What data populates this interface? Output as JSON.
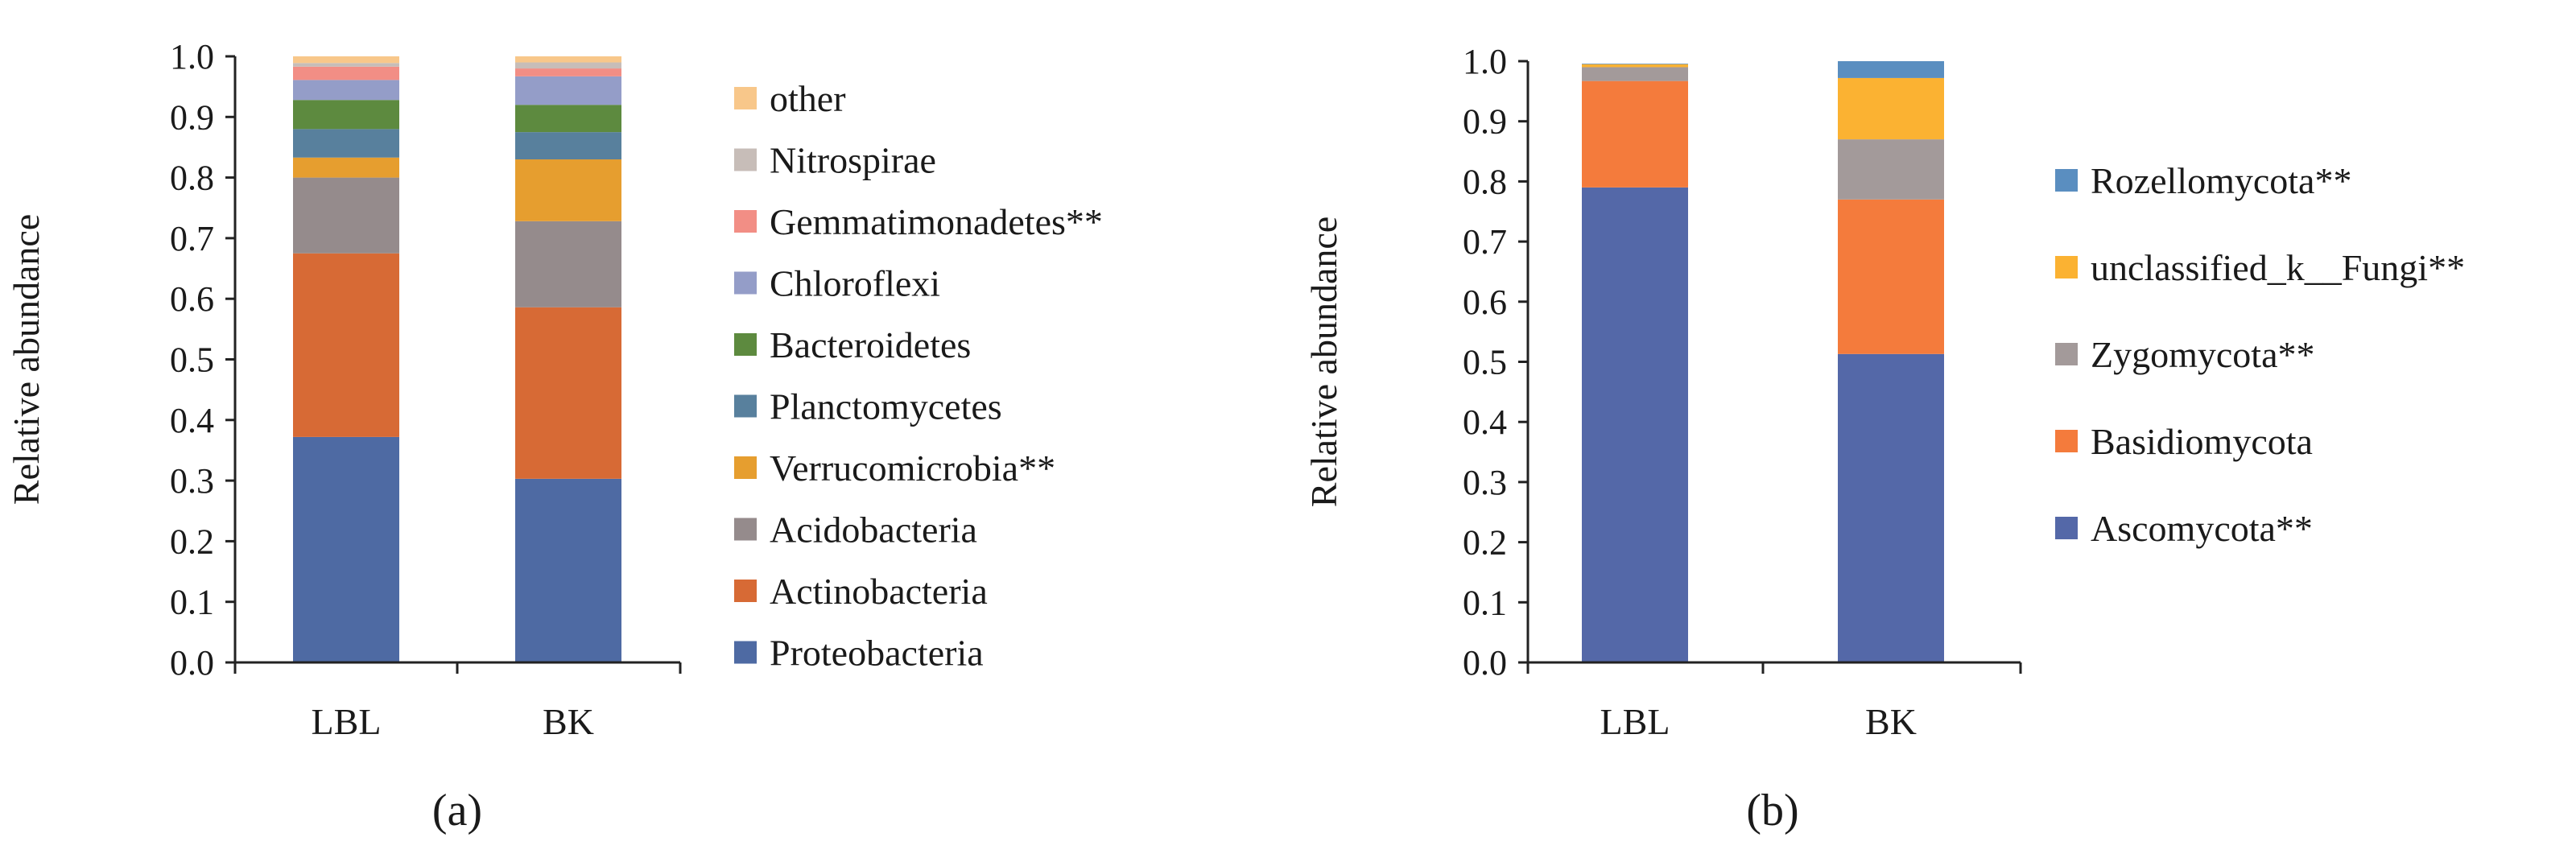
{
  "chart_data": [
    {
      "type": "stacked-bar",
      "panel_label": "(a)",
      "ylabel": "Relative abundance",
      "ylim": [
        0,
        1
      ],
      "yticks": [
        "0.0",
        "0.1",
        "0.2",
        "0.3",
        "0.4",
        "0.5",
        "0.6",
        "0.7",
        "0.8",
        "0.9",
        "1.0"
      ],
      "categories": [
        "LBL",
        "BK"
      ],
      "series": [
        {
          "name": "Proteobacteria",
          "color": "#4e6aa3",
          "values": [
            0.372,
            0.303
          ]
        },
        {
          "name": "Actinobacteria",
          "color": "#d76a35",
          "values": [
            0.303,
            0.283
          ]
        },
        {
          "name": "Acidobacteria",
          "color": "#958b8c",
          "values": [
            0.125,
            0.142
          ]
        },
        {
          "name": "Verrucomicrobia**",
          "color": "#e69e2f",
          "values": [
            0.033,
            0.102
          ]
        },
        {
          "name": "Planctomycetes",
          "color": "#58809d",
          "values": [
            0.047,
            0.045
          ]
        },
        {
          "name": "Bacteroidetes",
          "color": "#5d8a3f",
          "values": [
            0.048,
            0.045
          ]
        },
        {
          "name": "Chloroflexi",
          "color": "#949dc8",
          "values": [
            0.033,
            0.047
          ]
        },
        {
          "name": "Gemmatimonadetes**",
          "color": "#f28e85",
          "values": [
            0.022,
            0.013
          ]
        },
        {
          "name": "Nitrospirae",
          "color": "#c7bdb8",
          "values": [
            0.006,
            0.01
          ]
        },
        {
          "name": "other",
          "color": "#f8c78a",
          "values": [
            0.011,
            0.01
          ]
        }
      ]
    },
    {
      "type": "stacked-bar",
      "panel_label": "(b)",
      "ylabel": "Relative abundance",
      "ylim": [
        0,
        1
      ],
      "yticks": [
        "0.0",
        "0.1",
        "0.2",
        "0.3",
        "0.4",
        "0.5",
        "0.6",
        "0.7",
        "0.8",
        "0.9",
        "1.0"
      ],
      "categories": [
        "LBL",
        "BK"
      ],
      "series": [
        {
          "name": "Ascomycota**",
          "color": "#5468a8",
          "values": [
            0.79,
            0.513
          ]
        },
        {
          "name": "Basidiomycota",
          "color": "#f47b3c",
          "values": [
            0.177,
            0.257
          ]
        },
        {
          "name": "Zygomycota**",
          "color": "#a39a9a",
          "values": [
            0.023,
            0.1
          ]
        },
        {
          "name": "unclassified_k__Fungi**",
          "color": "#fbb232",
          "values": [
            0.005,
            0.102
          ]
        },
        {
          "name": "Rozellomycota**",
          "color": "#5a8ec0",
          "values": [
            0.001,
            0.028
          ]
        }
      ]
    }
  ]
}
